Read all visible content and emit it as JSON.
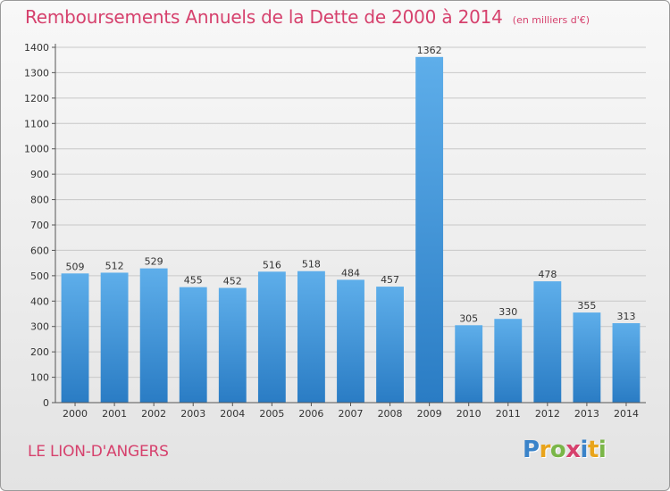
{
  "title": "Remboursements Annuels de la Dette de 2000 à 2014",
  "unit": "(en milliers d'€)",
  "commune": "LE LION-D'ANGERS",
  "logo": {
    "text": "Proxiti",
    "letters": [
      {
        "ch": "P",
        "color": "#3a83c9"
      },
      {
        "ch": "r",
        "color": "#e9a41b"
      },
      {
        "ch": "o",
        "color": "#7ab648"
      },
      {
        "ch": "x",
        "color": "#d6416d"
      },
      {
        "ch": "i",
        "color": "#3a83c9"
      },
      {
        "ch": "t",
        "color": "#e9a41b"
      },
      {
        "ch": "i",
        "color": "#7ab648"
      }
    ]
  },
  "chart_data": {
    "type": "bar",
    "categories": [
      "2000",
      "2001",
      "2002",
      "2003",
      "2004",
      "2005",
      "2006",
      "2007",
      "2008",
      "2009",
      "2010",
      "2011",
      "2012",
      "2013",
      "2014"
    ],
    "values": [
      509,
      512,
      529,
      455,
      452,
      516,
      518,
      484,
      457,
      1362,
      305,
      330,
      478,
      355,
      313
    ],
    "ylim": [
      0,
      1400
    ],
    "yticks": [
      0,
      100,
      200,
      300,
      400,
      500,
      600,
      700,
      800,
      900,
      1000,
      1100,
      1200,
      1300,
      1400
    ],
    "grid": true,
    "bar_color_top": "#5eaeea",
    "bar_color_bottom": "#2a7cc4",
    "title_color": "#d6416d"
  }
}
